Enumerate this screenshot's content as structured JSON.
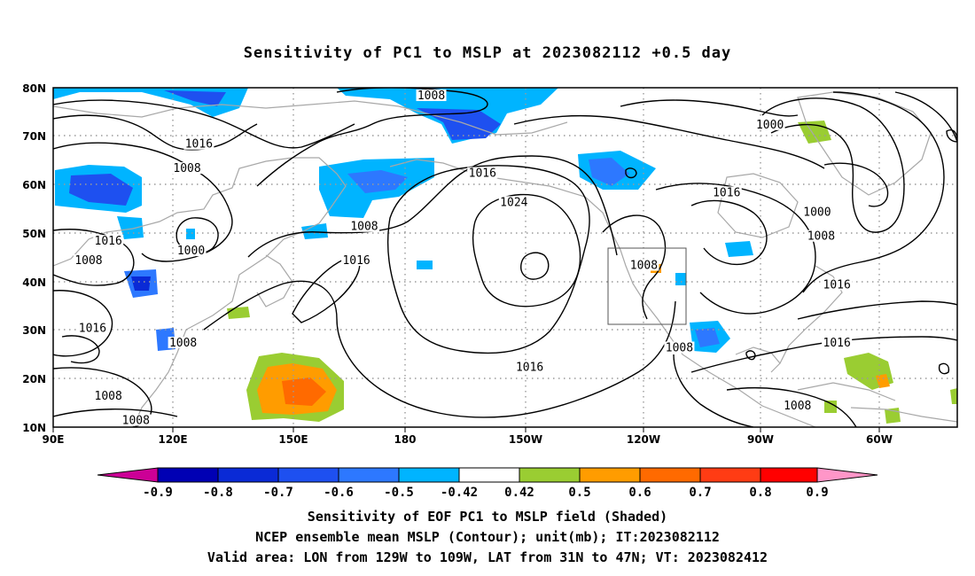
{
  "title": "Sensitivity of PC1 to MSLP at 2023082112 +0.5 day",
  "map": {
    "lon_ticks": [
      "90E",
      "120E",
      "150E",
      "180",
      "150W",
      "120W",
      "90W",
      "60W"
    ],
    "lat_ticks": [
      "80N",
      "70N",
      "60N",
      "50N",
      "40N",
      "30N",
      "20N",
      "10N"
    ],
    "contour_labels": [
      {
        "text": "1008",
        "lon": -174,
        "lat": 78
      },
      {
        "text": "1016",
        "lon": 127,
        "lat": 68
      },
      {
        "text": "1008",
        "lon": 124,
        "lat": 63
      },
      {
        "text": "1016",
        "lon": -161,
        "lat": 62
      },
      {
        "text": "1024",
        "lon": -153,
        "lat": 56
      },
      {
        "text": "1016",
        "lon": -99,
        "lat": 58
      },
      {
        "text": "1000",
        "lon": -88,
        "lat": 72
      },
      {
        "text": "1000",
        "lon": -76,
        "lat": 54
      },
      {
        "text": "1008",
        "lon": -75,
        "lat": 49
      },
      {
        "text": "1008",
        "lon": 169,
        "lat": 51
      },
      {
        "text": "1016",
        "lon": 167,
        "lat": 44
      },
      {
        "text": "1000",
        "lon": 125,
        "lat": 46
      },
      {
        "text": "1016",
        "lon": 104,
        "lat": 48
      },
      {
        "text": "1008",
        "lon": 99,
        "lat": 44
      },
      {
        "text": "1016",
        "lon": 100,
        "lat": 30
      },
      {
        "text": "1008",
        "lon": 123,
        "lat": 27
      },
      {
        "text": "1008",
        "lon": -120,
        "lat": 43
      },
      {
        "text": "1008",
        "lon": -111,
        "lat": 26
      },
      {
        "text": "1016",
        "lon": -71,
        "lat": 39
      },
      {
        "text": "1016",
        "lon": -71,
        "lat": 27
      },
      {
        "text": "1016",
        "lon": -149,
        "lat": 22
      },
      {
        "text": "1008",
        "lon": 104,
        "lat": 16
      },
      {
        "text": "1008",
        "lon": 111,
        "lat": 11
      },
      {
        "text": "1008",
        "lon": -81,
        "lat": 14
      }
    ]
  },
  "colorbar": {
    "labels": [
      "-0.9",
      "-0.8",
      "-0.7",
      "-0.6",
      "-0.5",
      "-0.42",
      "0.42",
      "0.5",
      "0.6",
      "0.7",
      "0.8",
      "0.9"
    ],
    "colors": [
      "#cc0096",
      "#0000b4",
      "#0a2ad6",
      "#1e50f0",
      "#2d78ff",
      "#00b4ff",
      "#ffffff",
      "#9acd32",
      "#ff9c00",
      "#ff6a00",
      "#ff3c14",
      "#ff0000",
      "#ff96c8"
    ]
  },
  "captions": {
    "line1": "Sensitivity of EOF PC1 to MSLP field (Shaded)",
    "line2": "NCEP ensemble mean MSLP (Contour); unit(mb); IT:2023082112",
    "line3": "Valid area: LON from 129W to 109W, LAT from 31N to 47N; VT: 2023082412"
  }
}
